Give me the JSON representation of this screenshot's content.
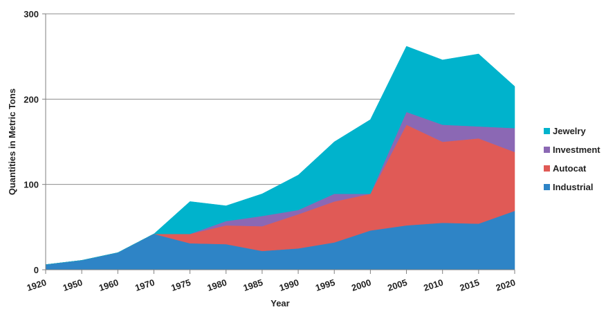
{
  "chart_data": {
    "type": "area",
    "stacked": true,
    "categories": [
      "1920",
      "1950",
      "1960",
      "1970",
      "1975",
      "1980",
      "1985",
      "1990",
      "1995",
      "2000",
      "2005",
      "2010",
      "2015",
      "2020"
    ],
    "series": [
      {
        "name": "Industrial",
        "color": "#2e84c6",
        "values": [
          6,
          11,
          20,
          42,
          31,
          30,
          22,
          25,
          32,
          46,
          52,
          55,
          54,
          69
        ]
      },
      {
        "name": "Autocat",
        "color": "#e05a56",
        "values": [
          0,
          0,
          0,
          0,
          11,
          22,
          29,
          40,
          48,
          43,
          118,
          95,
          100,
          69
        ]
      },
      {
        "name": "Investment",
        "color": "#8b68b4",
        "values": [
          0,
          0,
          0,
          0,
          0,
          5,
          12,
          5,
          9,
          0,
          15,
          20,
          14,
          28
        ]
      },
      {
        "name": "Jewelry",
        "color": "#00b3cc",
        "values": [
          0,
          0,
          0,
          0,
          38,
          18,
          26,
          41,
          61,
          87,
          77,
          76,
          85,
          49
        ]
      }
    ],
    "xlabel": "Year",
    "ylabel": "Quantities in Metric Tons",
    "ylim": [
      0,
      300
    ],
    "yticks": [
      0,
      100,
      200,
      300
    ],
    "grid": "horizontal",
    "legend": "right",
    "legend_order": [
      "Jewelry",
      "Investment",
      "Autocat",
      "Industrial"
    ]
  }
}
